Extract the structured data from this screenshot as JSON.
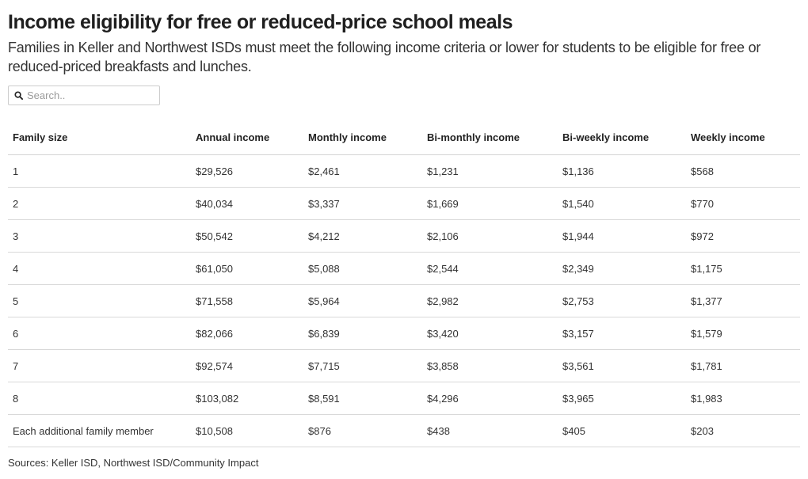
{
  "header": {
    "title": "Income eligibility for free or reduced-price school meals",
    "subtitle": "Families in Keller and Northwest ISDs must meet the following income criteria or lower for students to be eligible for free or reduced-priced breakfasts and lunches."
  },
  "search": {
    "placeholder": "Search..",
    "value": "",
    "icon": "search-icon"
  },
  "table": {
    "columns": [
      "Family size",
      "Annual income",
      "Monthly income",
      "Bi-monthly income",
      "Bi-weekly income",
      "Weekly income"
    ],
    "rows": [
      [
        "1",
        "$29,526",
        "$2,461",
        "$1,231",
        "$1,136",
        "$568"
      ],
      [
        "2",
        "$40,034",
        "$3,337",
        "$1,669",
        "$1,540",
        "$770"
      ],
      [
        "3",
        "$50,542",
        "$4,212",
        "$2,106",
        "$1,944",
        "$972"
      ],
      [
        "4",
        "$61,050",
        "$5,088",
        "$2,544",
        "$2,349",
        "$1,175"
      ],
      [
        "5",
        "$71,558",
        "$5,964",
        "$2,982",
        "$2,753",
        "$1,377"
      ],
      [
        "6",
        "$82,066",
        "$6,839",
        "$3,420",
        "$3,157",
        "$1,579"
      ],
      [
        "7",
        "$92,574",
        "$7,715",
        "$3,858",
        "$3,561",
        "$1,781"
      ],
      [
        "8",
        "$103,082",
        "$8,591",
        "$4,296",
        "$3,965",
        "$1,983"
      ],
      [
        "Each additional family member",
        "$10,508",
        "$876",
        "$438",
        "$405",
        "$203"
      ]
    ]
  },
  "footer": {
    "source": "Sources: Keller ISD, Northwest ISD/Community Impact"
  }
}
